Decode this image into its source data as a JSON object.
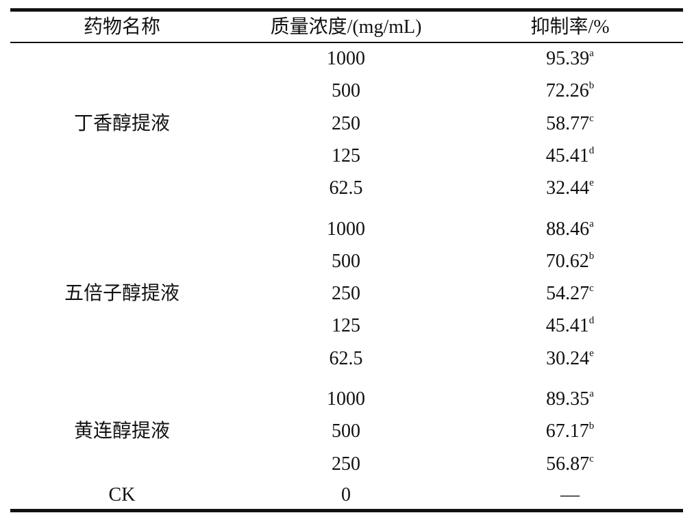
{
  "table": {
    "headers": [
      "药物名称",
      "质量浓度/(mg/mL)",
      "抑制率/%"
    ],
    "groups": [
      {
        "name": "丁香醇提液",
        "rows": [
          {
            "concentration": "1000",
            "rate": "95.39",
            "mark": "a"
          },
          {
            "concentration": "500",
            "rate": "72.26",
            "mark": "b"
          },
          {
            "concentration": "250",
            "rate": "58.77",
            "mark": "c"
          },
          {
            "concentration": "125",
            "rate": "45.41",
            "mark": "d"
          },
          {
            "concentration": "62.5",
            "rate": "32.44",
            "mark": "e"
          }
        ]
      },
      {
        "name": "五倍子醇提液",
        "rows": [
          {
            "concentration": "1000",
            "rate": "88.46",
            "mark": "a"
          },
          {
            "concentration": "500",
            "rate": "70.62",
            "mark": "b"
          },
          {
            "concentration": "250",
            "rate": "54.27",
            "mark": "c"
          },
          {
            "concentration": "125",
            "rate": "45.41",
            "mark": "d"
          },
          {
            "concentration": "62.5",
            "rate": "30.24",
            "mark": "e"
          }
        ]
      },
      {
        "name": "黄连醇提液",
        "rows": [
          {
            "concentration": "1000",
            "rate": "89.35",
            "mark": "a"
          },
          {
            "concentration": "500",
            "rate": "67.17",
            "mark": "b"
          },
          {
            "concentration": "250",
            "rate": "56.87",
            "mark": "c"
          }
        ]
      }
    ],
    "control": {
      "name": "CK",
      "concentration": "0",
      "rate": "—"
    }
  }
}
